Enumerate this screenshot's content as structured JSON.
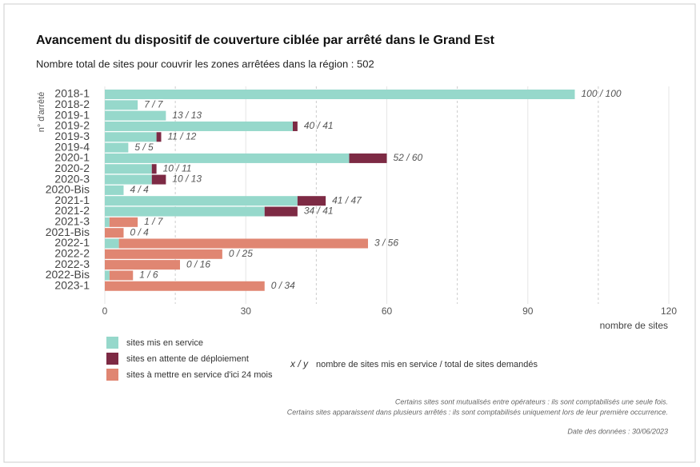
{
  "chart_data": {
    "type": "bar",
    "orientation": "horizontal",
    "stacked": true,
    "title": "Avancement du dispositif de couverture ciblée par arrêté dans le Grand Est",
    "subtitle": "Nombre total de sites pour couvrir les zones arrêtées dans la région : 502",
    "ylabel": "n° d'arrêté",
    "xlabel": "nombre de sites",
    "categories": [
      "2018-1",
      "2018-2",
      "2019-1",
      "2019-2",
      "2019-3",
      "2019-4",
      "2020-1",
      "2020-2",
      "2020-3",
      "2020-Bis",
      "2021-1",
      "2021-2",
      "2021-3",
      "2021-Bis",
      "2022-1",
      "2022-2",
      "2022-3",
      "2022-Bis",
      "2023-1"
    ],
    "series": [
      {
        "name": "sites mis en service",
        "color": "#96d8cb",
        "values": [
          100,
          7,
          13,
          40,
          11,
          5,
          52,
          10,
          10,
          4,
          41,
          34,
          1,
          0,
          3,
          0,
          0,
          1,
          0
        ]
      },
      {
        "name": "sites en attente de déploiement",
        "color": "#7d2a44",
        "values": [
          0,
          0,
          0,
          1,
          1,
          0,
          8,
          1,
          3,
          0,
          6,
          7,
          0,
          0,
          0,
          0,
          0,
          0,
          0
        ]
      },
      {
        "name": "sites à mettre en service d'ici 24 mois",
        "color": "#e08672",
        "values": [
          0,
          0,
          0,
          0,
          0,
          0,
          0,
          0,
          0,
          0,
          0,
          0,
          6,
          4,
          53,
          25,
          16,
          5,
          34
        ]
      }
    ],
    "value_labels": [
      "100 / 100",
      "7 /  7",
      "13 / 13",
      "40 /  41",
      "11 /  12",
      "5 /  5",
      "52 /  60",
      "10 / 11",
      "10 / 13",
      "4 /  4",
      "41 /  47",
      "34 / 41",
      "1 /  7",
      "0 /  4",
      "3 /  56",
      "0 /  25",
      "0 /  16",
      "1 /  6",
      "0 /  34"
    ],
    "xlim": [
      0,
      120
    ],
    "xticks": [
      0,
      30,
      60,
      90,
      120
    ],
    "minor_xticks": [
      15,
      45,
      75,
      105
    ],
    "grid": true,
    "key_symbol": "x / y",
    "key_text": "nombre de sites mis en service / total de sites demandés",
    "notes": [
      "Certains sites sont mutualisés entre opérateurs : ils sont comptabilisés une seule fois.",
      "Certains sites apparaissent dans plusieurs arrêtés : ils sont comptabilisés uniquement lors de leur première occurrence."
    ],
    "date": "Date des données : 30/06/2023"
  }
}
